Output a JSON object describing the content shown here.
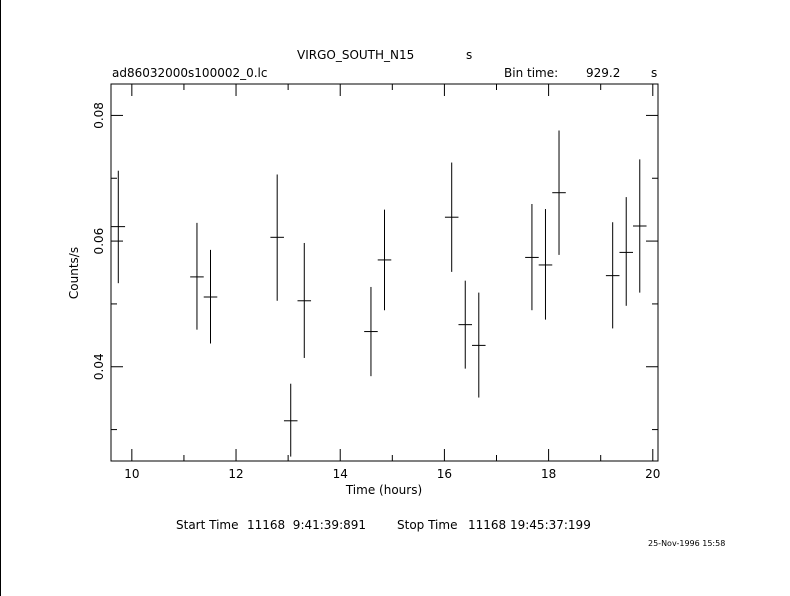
{
  "header": {
    "object_name": "VIRGO_SOUTH_N15",
    "object_suffix": "s",
    "file_name": "ad86032000s100002_0.lc",
    "bin_time_label": "Bin time:",
    "bin_time_value": "929.2",
    "bin_time_unit": "s"
  },
  "footer": {
    "start_time_label": "Start Time",
    "start_time_value": "11168  9:41:39:891",
    "stop_time_label": "Stop Time",
    "stop_time_value": "11168 19:45:37:199",
    "timestamp": "25-Nov-1996 15:58"
  },
  "chart_data": {
    "type": "scatter",
    "xlabel": "Time (hours)",
    "ylabel": "Counts/s",
    "xlim": [
      9.6,
      20.1
    ],
    "ylim": [
      0.025,
      0.085
    ],
    "xticks": [
      10,
      12,
      14,
      16,
      18,
      20
    ],
    "xtick_labels": [
      "10",
      "12",
      "14",
      "16",
      "18",
      "20"
    ],
    "yticks": [
      0.04,
      0.06,
      0.08
    ],
    "ytick_labels": [
      "0.04",
      "0.06",
      "0.08"
    ],
    "grid": false,
    "points": [
      {
        "x": 9.74,
        "y": 0.0623,
        "xerr": 0.13,
        "ylo": 0.0533,
        "yhi": 0.0712
      },
      {
        "x": 11.25,
        "y": 0.0543,
        "xerr": 0.13,
        "ylo": 0.0459,
        "yhi": 0.0629
      },
      {
        "x": 11.51,
        "y": 0.0511,
        "xerr": 0.13,
        "ylo": 0.0437,
        "yhi": 0.0586
      },
      {
        "x": 12.79,
        "y": 0.0606,
        "xerr": 0.13,
        "ylo": 0.0505,
        "yhi": 0.0706
      },
      {
        "x": 13.05,
        "y": 0.0314,
        "xerr": 0.13,
        "ylo": 0.0257,
        "yhi": 0.0373
      },
      {
        "x": 13.31,
        "y": 0.0505,
        "xerr": 0.13,
        "ylo": 0.0414,
        "yhi": 0.0597
      },
      {
        "x": 14.59,
        "y": 0.0456,
        "xerr": 0.13,
        "ylo": 0.0385,
        "yhi": 0.0527
      },
      {
        "x": 14.85,
        "y": 0.057,
        "xerr": 0.13,
        "ylo": 0.049,
        "yhi": 0.065
      },
      {
        "x": 16.14,
        "y": 0.0638,
        "xerr": 0.13,
        "ylo": 0.0551,
        "yhi": 0.0725
      },
      {
        "x": 16.4,
        "y": 0.0467,
        "xerr": 0.13,
        "ylo": 0.0397,
        "yhi": 0.0537
      },
      {
        "x": 16.66,
        "y": 0.0434,
        "xerr": 0.13,
        "ylo": 0.0351,
        "yhi": 0.0518
      },
      {
        "x": 17.68,
        "y": 0.0574,
        "xerr": 0.13,
        "ylo": 0.049,
        "yhi": 0.0659
      },
      {
        "x": 17.94,
        "y": 0.0562,
        "xerr": 0.13,
        "ylo": 0.0475,
        "yhi": 0.0651
      },
      {
        "x": 18.2,
        "y": 0.0677,
        "xerr": 0.13,
        "ylo": 0.0578,
        "yhi": 0.0776
      },
      {
        "x": 19.23,
        "y": 0.0545,
        "xerr": 0.13,
        "ylo": 0.0461,
        "yhi": 0.063
      },
      {
        "x": 19.49,
        "y": 0.0582,
        "xerr": 0.13,
        "ylo": 0.0497,
        "yhi": 0.067
      },
      {
        "x": 19.75,
        "y": 0.0624,
        "xerr": 0.13,
        "ylo": 0.0518,
        "yhi": 0.073
      }
    ]
  }
}
